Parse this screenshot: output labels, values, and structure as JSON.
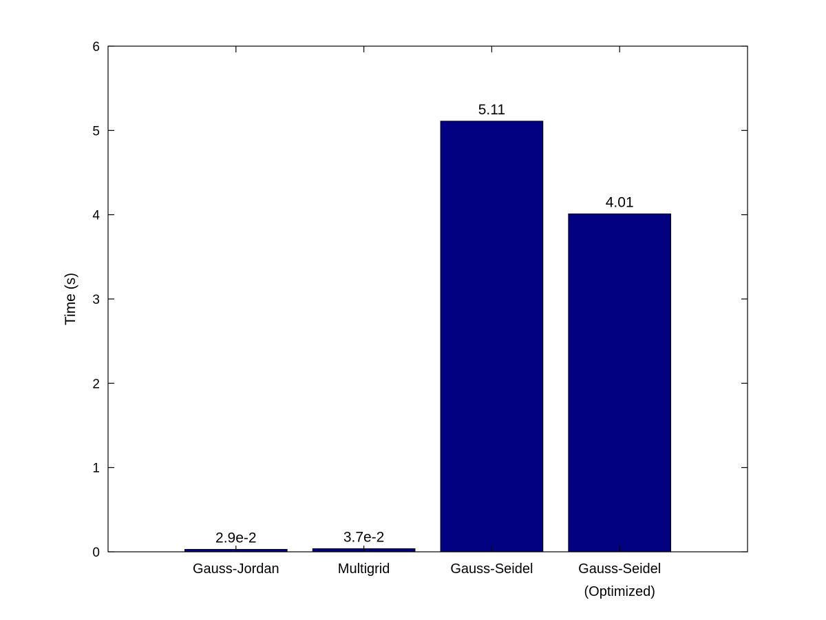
{
  "chart_data": {
    "type": "bar",
    "categories": [
      "Gauss-Jordan",
      "Multigrid",
      "Gauss-Seidel",
      "Gauss-Seidel\n(Optimized)"
    ],
    "values": [
      0.029,
      0.037,
      5.11,
      4.01
    ],
    "data_labels": [
      "2.9e-2",
      "3.7e-2",
      "5.11",
      "4.01"
    ],
    "ylabel": "Time (s)",
    "xlabel": "",
    "ylim": [
      0,
      6
    ],
    "yticks": [
      0,
      1,
      2,
      3,
      4,
      5,
      6
    ],
    "grid": false,
    "bar_color": "#000080"
  }
}
